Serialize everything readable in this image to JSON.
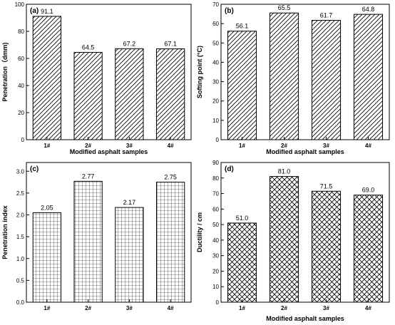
{
  "chart_data": [
    {
      "panel": "(a)",
      "type": "bar",
      "categories": [
        "1#",
        "2#",
        "3#",
        "4#"
      ],
      "values": [
        91.1,
        64.5,
        67.2,
        67.1
      ],
      "value_labels": [
        "91.1",
        "64.5",
        "67.2",
        "67.1"
      ],
      "xlabel": "Modified asphalt samples",
      "ylabel": "Penetration（dmm)",
      "ylim": [
        0,
        100
      ],
      "yticks": [
        0,
        20,
        40,
        60,
        80,
        100
      ],
      "ytick_labels": [
        "0",
        "20",
        "40",
        "60",
        "80",
        "100"
      ],
      "fill_pattern": "diagonal-hatch"
    },
    {
      "panel": "(b)",
      "type": "bar",
      "categories": [
        "1#",
        "2#",
        "3#",
        "4#"
      ],
      "values": [
        56.1,
        65.5,
        61.7,
        64.8
      ],
      "value_labels": [
        "56.1",
        "65.5",
        "61.7",
        "64.8"
      ],
      "xlabel": "Modified asphalt samples",
      "ylabel": "Softing point (°C)",
      "ylim": [
        0,
        70
      ],
      "yticks": [
        0,
        10,
        20,
        30,
        40,
        50,
        60,
        70
      ],
      "ytick_labels": [
        "0",
        "10",
        "20",
        "30",
        "40",
        "50",
        "60",
        "70"
      ],
      "fill_pattern": "diagonal-hatch"
    },
    {
      "panel": "(c)",
      "type": "bar",
      "categories": [
        "1#",
        "2#",
        "3#",
        "4#"
      ],
      "values": [
        2.05,
        2.77,
        2.17,
        2.75
      ],
      "value_labels": [
        "2.05",
        "2.77",
        "2.17",
        "2.75"
      ],
      "xlabel": "",
      "ylabel": "Penetration index",
      "ylim": [
        0,
        3.2
      ],
      "yticks": [
        0.0,
        0.5,
        1.0,
        1.5,
        2.0,
        2.5,
        3.0
      ],
      "ytick_labels": [
        "0.0",
        "0.5",
        "1.0",
        "1.5",
        "2.0",
        "2.5",
        "3.0"
      ],
      "fill_pattern": "grid"
    },
    {
      "panel": "(d)",
      "type": "bar",
      "categories": [
        "1#",
        "2#",
        "3#",
        "4#"
      ],
      "values": [
        51.0,
        81.0,
        71.5,
        69.0
      ],
      "value_labels": [
        "51.0",
        "81.0",
        "71.5",
        "69.0"
      ],
      "xlabel": "Modified asphalt samples",
      "ylabel": "Ductility / cm",
      "ylim": [
        0,
        90
      ],
      "yticks": [
        0,
        10,
        20,
        30,
        40,
        50,
        60,
        70,
        80,
        90
      ],
      "ytick_labels": [
        "0",
        "10",
        "20",
        "30",
        "40",
        "50",
        "60",
        "70",
        "80",
        "90"
      ],
      "fill_pattern": "cross-hatch"
    }
  ]
}
